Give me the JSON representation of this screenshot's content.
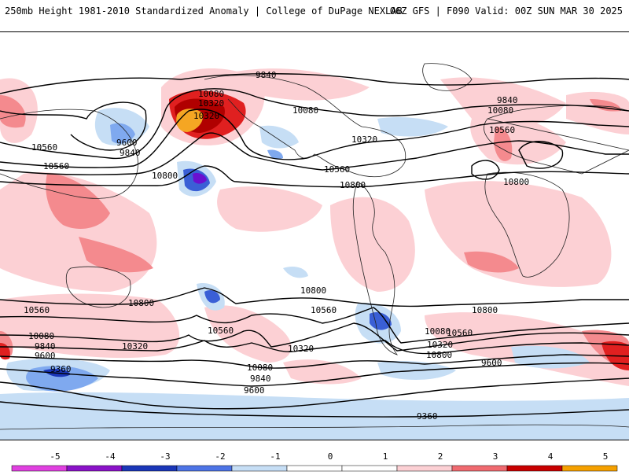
{
  "header": {
    "left": "250mb Height 1981-2010 Standardized Anomaly | College of DuPage NEXLAB",
    "right": "06Z GFS | F090 Valid: 00Z SUN MAR 30 2025"
  },
  "map": {
    "contour_labels": [
      "9840",
      "10080",
      "10320",
      "10560",
      "9600",
      "9840",
      "10320",
      "10560",
      "10800",
      "10080",
      "9840",
      "10080",
      "10320",
      "10560",
      "10800",
      "10560",
      "10800",
      "10800",
      "10800",
      "10560",
      "10560",
      "10320",
      "10080",
      "9840",
      "9600",
      "10560",
      "10800",
      "10320",
      "10080",
      "9840",
      "9600",
      "9360",
      "10320",
      "10080",
      "10560",
      "10800",
      "9600",
      "9360"
    ],
    "colors": {
      "neg_light": "#c6def5",
      "neg_mid": "#7fa9ef",
      "neg_strong": "#3a5fd6",
      "neg_deep": "#6a0fd0",
      "pos_light": "#fcd0d4",
      "pos_mid": "#f48a8e",
      "pos_strong": "#e02020",
      "pos_deep": "#b00000",
      "pos_max": "#f5a623",
      "land_lines": "#222222"
    }
  },
  "colorbar": {
    "ticks": [
      "-5",
      "-4",
      "-3",
      "-2",
      "-1",
      "0",
      "1",
      "2",
      "3",
      "4",
      "5"
    ],
    "colors": [
      "#e040e0",
      "#8a12c8",
      "#1a36b8",
      "#4d74e6",
      "#c6def5",
      "#ffffff",
      "#ffffff",
      "#fcd0d4",
      "#f06a70",
      "#c80000",
      "#f5a000"
    ]
  }
}
